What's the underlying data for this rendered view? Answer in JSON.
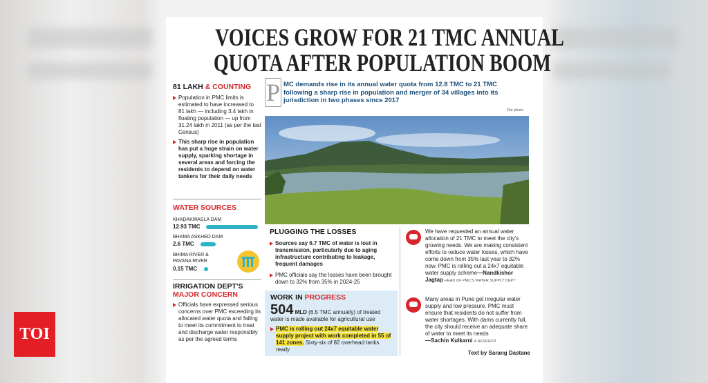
{
  "headline_lines": [
    "VOICES GROW FOR 21 TMC ANNUAL",
    "QUOTA AFTER POPULATION BOOM"
  ],
  "lede": {
    "drop_cap": "P",
    "text": "MC demands rise in its annual water quota from 12.8 TMC to 21 TMC following a sharp rise in population and merger of 34 villages into its jurisdiction in two phases since 2017",
    "photo_credit": "File photo"
  },
  "counting": {
    "title_black": "81 LAKH",
    "title_red": "& COUNTING",
    "bullets": [
      "Population in PMC limits is estimated to have increased to 81 lakh — including 3.4 lakh in floating population — up from 31.24 lakh in 2011 (as per the last Census)",
      "This sharp rise in population has put a huge strain on water supply, sparking shortage in several areas and forcing the residents to depend on water tankers for their daily needs"
    ]
  },
  "water_sources": {
    "title": "WATER SOURCES",
    "items": [
      {
        "name": "KHADAKWASLA DAM",
        "value": "12.93 TMC"
      },
      {
        "name": "BHAMA ASKHED DAM",
        "value": "2.6 TMC"
      },
      {
        "name": "BHIMA RIVER & PAVANA RIVER",
        "value": "0.15 TMC"
      }
    ]
  },
  "irrigation": {
    "title_black": "IRRIGATION DEPT'S",
    "title_red": "MAJOR CONCERN",
    "bullets": [
      "Officials have expressed serious concerns over PMC exceeding its allocated water quota and failing to meet its commitment to treat and discharge water responsibly as per the agreed terms"
    ]
  },
  "plugging": {
    "title": "PLUGGING THE LOSSES",
    "bullets": [
      "Sources say 6.7 TMC of water is lost in transmission, particularly due to aging infrastructure contributing to leakage, frequent damages",
      "PMC officials say the losses have been brought down to 32% from 35% in 2024-25"
    ]
  },
  "work": {
    "title_black": "WORK IN",
    "title_red": "PROGRESS",
    "big_number": "504",
    "unit": "MLD",
    "text": "(6.5 TMC annually) of treated water is made available for agricultural use",
    "highlight": "PMC is rolling out 24x7 equitable water supply project with work completed in 55 of 141 zones.",
    "tail": "Sixty-six of 82 overhead tanks ready"
  },
  "quotes": [
    {
      "text": "We have requested an annual water allocation of 21 TMC to meet the city's growing needs. We are making consistent efforts to reduce water losses, which have come down from 35% last year to 32% now. PMC is rolling out a 24x7 equitable water supply scheme",
      "author": "—Nandkishor Jagtap",
      "role": "HEAD OF PMC'S WATER SUPPLY DEPT"
    },
    {
      "text": "Many areas in Pune get irregular water supply and low pressure. PMC must ensure that residents do not suffer from water shortages. With dams currently full, the city should receive an adequate share of water to meet its needs",
      "author": "—Sachin Kulkarni",
      "role": "A RESIDENT"
    }
  ],
  "byline": "Text by Sarang Dastane",
  "logo": "TOI"
}
